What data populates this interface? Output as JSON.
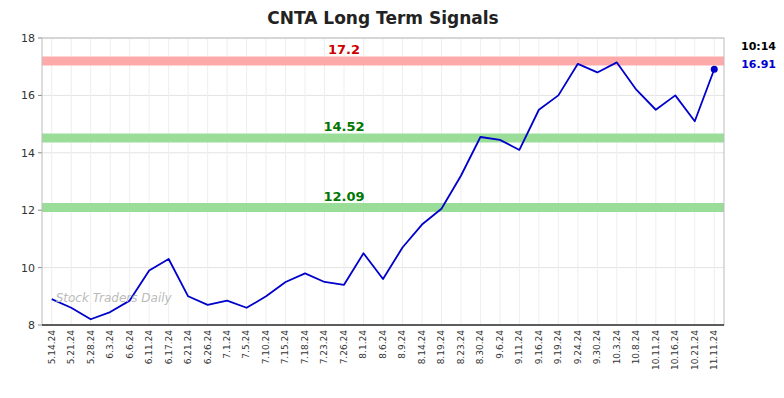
{
  "chart_data": {
    "type": "line",
    "title": "CNTA Long Term Signals",
    "categories": [
      "5.14.24",
      "5.21.24",
      "5.28.24",
      "6.3.24",
      "6.6.24",
      "6.11.24",
      "6.17.24",
      "6.21.24",
      "6.26.24",
      "7.1.24",
      "7.5.24",
      "7.10.24",
      "7.15.24",
      "7.18.24",
      "7.23.24",
      "7.26.24",
      "8.1.24",
      "8.6.24",
      "8.9.24",
      "8.14.24",
      "8.19.24",
      "8.23.24",
      "8.30.24",
      "9.6.24",
      "9.11.24",
      "9.16.24",
      "9.19.24",
      "9.24.24",
      "9.30.24",
      "10.3.24",
      "10.8.24",
      "10.11.24",
      "10.16.24",
      "10.21.24",
      "11.11.24"
    ],
    "values": [
      8.9,
      8.6,
      8.2,
      8.45,
      8.85,
      9.9,
      10.3,
      9.0,
      8.7,
      8.85,
      8.6,
      9.0,
      9.5,
      9.8,
      9.5,
      9.4,
      10.5,
      9.6,
      10.7,
      11.5,
      12.05,
      13.2,
      14.55,
      14.45,
      14.1,
      15.5,
      16.0,
      17.1,
      16.8,
      17.15,
      16.2,
      15.5,
      16.0,
      15.1,
      16.91
    ],
    "color": "#0000cc",
    "ylim": [
      8,
      18
    ],
    "yticks": [
      8,
      10,
      12,
      14,
      16,
      18
    ],
    "grid": true,
    "hlines": [
      {
        "value": 17.2,
        "color": "#ffaaaa",
        "label_color": "#cc0000"
      },
      {
        "value": 14.52,
        "color": "#99dd99",
        "label_color": "#007700"
      },
      {
        "value": 12.09,
        "color": "#99dd99",
        "label_color": "#007700"
      }
    ],
    "annotations": [
      {
        "text": "10:14",
        "color": "#000000"
      },
      {
        "value": 16.91,
        "color": "#0000cc"
      },
      {
        "text": "Stock Traders Daily",
        "color": "#bbbbbb"
      }
    ]
  }
}
